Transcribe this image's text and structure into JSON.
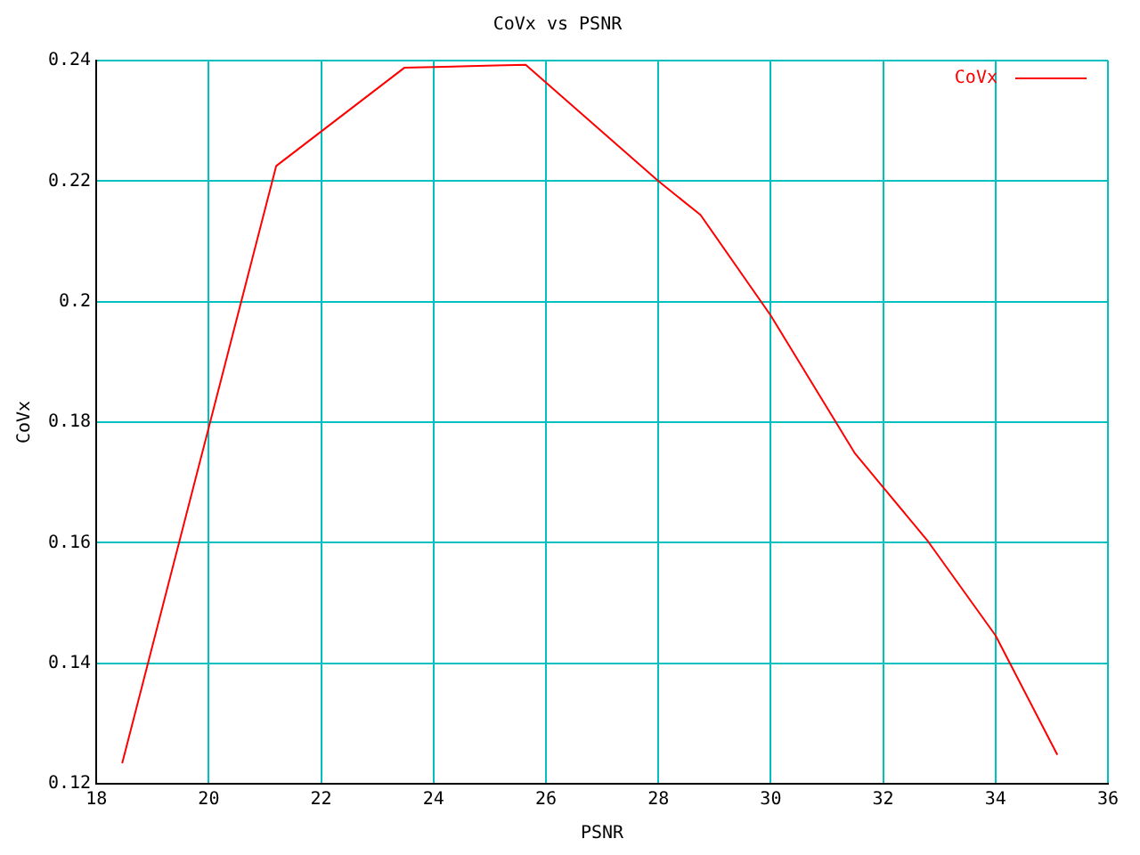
{
  "chart_data": {
    "type": "line",
    "title": "CoVx vs PSNR",
    "xlabel": "PSNR",
    "ylabel": "CoVx",
    "x": [
      18.46,
      21.2,
      23.48,
      25.1,
      25.64,
      28,
      28.75,
      30,
      31.5,
      32,
      32.8,
      34,
      35.1
    ],
    "series": [
      {
        "name": "CoVx",
        "color": "#ff0000",
        "values": [
          0.1234,
          0.2225,
          0.2388,
          0.2392,
          0.2393,
          0.22,
          0.2144,
          0.1977,
          0.1748,
          0.1692,
          0.1602,
          0.1446,
          0.1248
        ]
      }
    ],
    "xlim": [
      18,
      36
    ],
    "xticks": [
      18,
      20,
      22,
      24,
      26,
      28,
      30,
      32,
      34,
      36
    ],
    "ylim": [
      0.12,
      0.24
    ],
    "yticks": [
      0.12,
      0.14,
      0.16,
      0.18,
      0.2,
      0.22,
      0.24
    ],
    "grid": true,
    "legend": "top right",
    "marker": "none",
    "line_style": "solid"
  }
}
